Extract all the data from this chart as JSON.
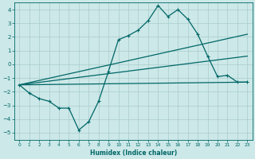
{
  "xlabel": "Humidex (Indice chaleur)",
  "bg_color": "#cce8e8",
  "grid_color": "#aacccc",
  "line_color": "#006666",
  "xlim": [
    -0.5,
    23.5
  ],
  "ylim": [
    -5.5,
    4.5
  ],
  "yticks": [
    -5,
    -4,
    -3,
    -2,
    -1,
    0,
    1,
    2,
    3,
    4
  ],
  "xticks": [
    0,
    1,
    2,
    3,
    4,
    5,
    6,
    7,
    8,
    9,
    10,
    11,
    12,
    13,
    14,
    15,
    16,
    17,
    18,
    19,
    20,
    21,
    22,
    23
  ],
  "line1_x": [
    0,
    1,
    2,
    3,
    4,
    5,
    6,
    7,
    8,
    9,
    10,
    11,
    12,
    13,
    14,
    15,
    16,
    17,
    18,
    19,
    20,
    21,
    22,
    23
  ],
  "line1_y": [
    -1.5,
    -2.1,
    -2.5,
    -2.7,
    -3.2,
    -3.2,
    -4.8,
    -4.2,
    -2.7,
    -0.5,
    1.8,
    2.1,
    2.5,
    3.2,
    4.3,
    3.5,
    4.0,
    3.3,
    2.2,
    0.6,
    -0.9,
    -0.8,
    -1.3,
    -1.3
  ],
  "line2_x": [
    0,
    23
  ],
  "line2_y": [
    -1.5,
    2.2
  ],
  "line3_x": [
    0,
    23
  ],
  "line3_y": [
    -1.5,
    0.6
  ],
  "line4_x": [
    0,
    23
  ],
  "line4_y": [
    -1.5,
    -1.3
  ]
}
